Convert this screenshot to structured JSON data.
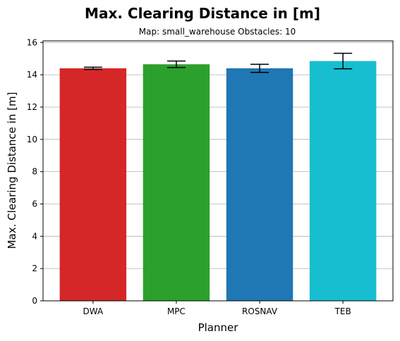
{
  "chart_data": {
    "type": "bar",
    "title": "Max. Clearing Distance in [m]",
    "subtitle": "Map: small_warehouse Obstacles: 10",
    "xlabel": "Planner",
    "ylabel": "Max. Clearing Distance in [m]",
    "categories": [
      "DWA",
      "MPC",
      "ROSNAV",
      "TEB"
    ],
    "values": [
      14.4,
      14.65,
      14.4,
      14.85
    ],
    "error": [
      0.07,
      0.2,
      0.25,
      0.48
    ],
    "colors": [
      "#d62728",
      "#2ca02c",
      "#1f77b4",
      "#17becf"
    ],
    "ylim": [
      0,
      16.1
    ],
    "yticks": [
      "0",
      "2",
      "4",
      "6",
      "8",
      "10",
      "12",
      "14",
      "16"
    ],
    "grid": "y"
  }
}
